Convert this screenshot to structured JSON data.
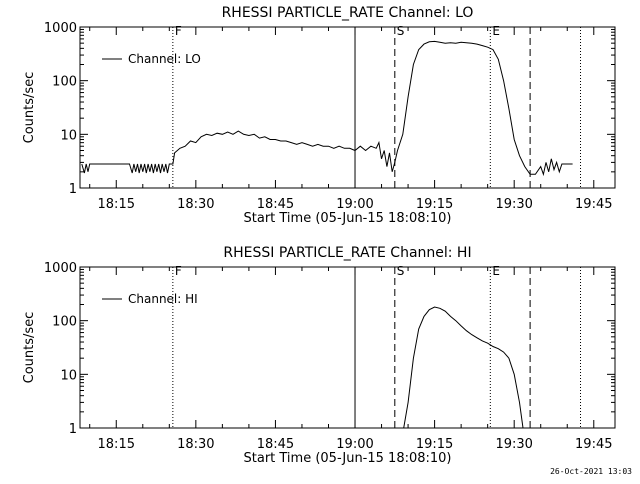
{
  "timestamp": "26-Oct-2021 13:03",
  "chart_data": [
    {
      "type": "line",
      "title": "RHESSI PARTICLE_RATE Channel: LO",
      "xlabel": "Start Time (05-Jun-15 18:08:10)",
      "ylabel": "Counts/sec",
      "y_scale": "log",
      "ylim": [
        1,
        1000
      ],
      "xlim": [
        "18:08:10",
        "19:49:00"
      ],
      "x_ticks": [
        "18:15",
        "18:30",
        "18:45",
        "19:00",
        "19:15",
        "19:30",
        "19:45"
      ],
      "y_ticks": [
        "1",
        "10",
        "100",
        "1000"
      ],
      "legend": {
        "label": "Channel: LO",
        "placement": "top-left"
      },
      "markers": [
        {
          "time": "18:25:40",
          "label": "F",
          "style": "dotted"
        },
        {
          "time": "19:00:00",
          "label": "",
          "style": "solid"
        },
        {
          "time": "19:07:30",
          "label": "S",
          "style": "dashed"
        },
        {
          "time": "19:25:30",
          "label": "E",
          "style": "dotted"
        },
        {
          "time": "19:33:00",
          "label": "",
          "style": "dashed"
        },
        {
          "time": "19:42:30",
          "label": "",
          "style": "dotted"
        }
      ],
      "series": [
        {
          "name": "Channel: LO",
          "points": [
            [
              "18:08:30",
              2.8
            ],
            [
              "18:09:00",
              1.9
            ],
            [
              "18:09:20",
              2.8
            ],
            [
              "18:09:40",
              2.0
            ],
            [
              "18:10:00",
              2.8
            ],
            [
              "18:12:00",
              2.8
            ],
            [
              "18:14:00",
              2.8
            ],
            [
              "18:16:00",
              2.8
            ],
            [
              "18:17:30",
              2.8
            ],
            [
              "18:18:00",
              1.9
            ],
            [
              "18:18:20",
              2.8
            ],
            [
              "18:18:40",
              2.0
            ],
            [
              "18:19:00",
              2.8
            ],
            [
              "18:19:20",
              1.9
            ],
            [
              "18:19:40",
              2.8
            ],
            [
              "18:20:00",
              2.0
            ],
            [
              "18:20:20",
              2.8
            ],
            [
              "18:20:40",
              1.9
            ],
            [
              "18:21:00",
              2.8
            ],
            [
              "18:21:20",
              2.0
            ],
            [
              "18:21:40",
              2.8
            ],
            [
              "18:22:00",
              1.9
            ],
            [
              "18:22:20",
              2.8
            ],
            [
              "18:22:40",
              2.0
            ],
            [
              "18:23:00",
              2.8
            ],
            [
              "18:23:20",
              1.9
            ],
            [
              "18:23:40",
              2.8
            ],
            [
              "18:24:00",
              2.0
            ],
            [
              "18:24:20",
              2.8
            ],
            [
              "18:24:40",
              1.9
            ],
            [
              "18:25:00",
              2.8
            ],
            [
              "18:25:40",
              2.8
            ],
            [
              "18:26:00",
              4.5
            ],
            [
              "18:27:00",
              5.5
            ],
            [
              "18:28:00",
              6.0
            ],
            [
              "18:29:00",
              7.5
            ],
            [
              "18:30:00",
              7.0
            ],
            [
              "18:31:00",
              9.0
            ],
            [
              "18:32:00",
              10.0
            ],
            [
              "18:33:00",
              9.5
            ],
            [
              "18:34:00",
              10.5
            ],
            [
              "18:35:00",
              10.0
            ],
            [
              "18:36:00",
              11.0
            ],
            [
              "18:37:00",
              10.0
            ],
            [
              "18:38:00",
              11.5
            ],
            [
              "18:39:00",
              10.0
            ],
            [
              "18:40:00",
              9.5
            ],
            [
              "18:41:00",
              10.0
            ],
            [
              "18:42:00",
              8.5
            ],
            [
              "18:43:00",
              9.0
            ],
            [
              "18:44:00",
              8.0
            ],
            [
              "18:45:00",
              8.0
            ],
            [
              "18:46:00",
              7.5
            ],
            [
              "18:47:00",
              7.5
            ],
            [
              "18:48:00",
              7.0
            ],
            [
              "18:49:00",
              6.5
            ],
            [
              "18:50:00",
              7.0
            ],
            [
              "18:51:00",
              6.5
            ],
            [
              "18:52:00",
              6.0
            ],
            [
              "18:53:00",
              6.5
            ],
            [
              "18:54:00",
              6.0
            ],
            [
              "18:55:00",
              6.0
            ],
            [
              "18:56:00",
              5.5
            ],
            [
              "18:57:00",
              6.0
            ],
            [
              "18:58:00",
              5.5
            ],
            [
              "18:59:00",
              5.5
            ],
            [
              "19:00:00",
              5.0
            ],
            [
              "19:01:00",
              6.0
            ],
            [
              "19:02:00",
              5.0
            ],
            [
              "19:03:00",
              6.0
            ],
            [
              "19:04:00",
              5.5
            ],
            [
              "19:04:30",
              7.0
            ],
            [
              "19:05:00",
              3.5
            ],
            [
              "19:05:30",
              5.0
            ],
            [
              "19:06:00",
              2.5
            ],
            [
              "19:06:30",
              4.5
            ],
            [
              "19:07:00",
              2.0
            ],
            [
              "19:07:30",
              3.0
            ],
            [
              "19:08:00",
              5.0
            ],
            [
              "19:09:00",
              10.0
            ],
            [
              "19:10:00",
              50.0
            ],
            [
              "19:11:00",
              200.0
            ],
            [
              "19:12:00",
              380.0
            ],
            [
              "19:13:00",
              480.0
            ],
            [
              "19:14:00",
              530.0
            ],
            [
              "19:15:00",
              540.0
            ],
            [
              "19:16:00",
              520.0
            ],
            [
              "19:17:00",
              500.0
            ],
            [
              "19:18:00",
              510.0
            ],
            [
              "19:19:00",
              500.0
            ],
            [
              "19:20:00",
              520.0
            ],
            [
              "19:21:00",
              510.0
            ],
            [
              "19:22:00",
              500.0
            ],
            [
              "19:23:00",
              480.0
            ],
            [
              "19:24:00",
              450.0
            ],
            [
              "19:25:00",
              420.0
            ],
            [
              "19:26:00",
              380.0
            ],
            [
              "19:27:00",
              250.0
            ],
            [
              "19:28:00",
              100.0
            ],
            [
              "19:29:00",
              30.0
            ],
            [
              "19:30:00",
              8.0
            ],
            [
              "19:31:00",
              4.0
            ],
            [
              "19:32:00",
              2.5
            ],
            [
              "19:33:00",
              1.8
            ],
            [
              "19:34:00",
              1.8
            ],
            [
              "19:35:00",
              2.5
            ],
            [
              "19:35:30",
              1.8
            ],
            [
              "19:36:00",
              3.0
            ],
            [
              "19:36:30",
              2.0
            ],
            [
              "19:37:00",
              3.5
            ],
            [
              "19:37:30",
              2.2
            ],
            [
              "19:38:00",
              3.0
            ],
            [
              "19:38:30",
              2.0
            ],
            [
              "19:39:00",
              2.8
            ],
            [
              "19:40:00",
              2.8
            ],
            [
              "19:41:00",
              2.8
            ]
          ]
        }
      ]
    },
    {
      "type": "line",
      "title": "RHESSI PARTICLE_RATE Channel: HI",
      "xlabel": "Start Time (05-Jun-15 18:08:10)",
      "ylabel": "Counts/sec",
      "y_scale": "log",
      "ylim": [
        1,
        1000
      ],
      "xlim": [
        "18:08:10",
        "19:49:00"
      ],
      "x_ticks": [
        "18:15",
        "18:30",
        "18:45",
        "19:00",
        "19:15",
        "19:30",
        "19:45"
      ],
      "y_ticks": [
        "1",
        "10",
        "100",
        "1000"
      ],
      "legend": {
        "label": "Channel: HI",
        "placement": "top-left"
      },
      "markers": [
        {
          "time": "18:25:40",
          "label": "F",
          "style": "dotted"
        },
        {
          "time": "19:00:00",
          "label": "",
          "style": "solid"
        },
        {
          "time": "19:07:30",
          "label": "S",
          "style": "dashed"
        },
        {
          "time": "19:25:30",
          "label": "E",
          "style": "dotted"
        },
        {
          "time": "19:33:00",
          "label": "",
          "style": "dashed"
        },
        {
          "time": "19:42:30",
          "label": "",
          "style": "dotted"
        }
      ],
      "series": [
        {
          "name": "Channel: HI",
          "points": [
            [
              "19:09:10",
              1.0
            ],
            [
              "19:10:00",
              3.0
            ],
            [
              "19:11:00",
              20.0
            ],
            [
              "19:12:00",
              70.0
            ],
            [
              "19:13:00",
              120.0
            ],
            [
              "19:14:00",
              160.0
            ],
            [
              "19:15:00",
              180.0
            ],
            [
              "19:16:00",
              170.0
            ],
            [
              "19:17:00",
              150.0
            ],
            [
              "19:18:00",
              120.0
            ],
            [
              "19:19:00",
              100.0
            ],
            [
              "19:20:00",
              80.0
            ],
            [
              "19:21:00",
              65.0
            ],
            [
              "19:22:00",
              55.0
            ],
            [
              "19:23:00",
              48.0
            ],
            [
              "19:24:00",
              42.0
            ],
            [
              "19:25:00",
              38.0
            ],
            [
              "19:26:00",
              33.0
            ],
            [
              "19:27:00",
              30.0
            ],
            [
              "19:28:00",
              26.0
            ],
            [
              "19:29:00",
              20.0
            ],
            [
              "19:30:00",
              10.0
            ],
            [
              "19:31:00",
              3.0
            ],
            [
              "19:31:40",
              1.0
            ]
          ]
        }
      ]
    }
  ]
}
